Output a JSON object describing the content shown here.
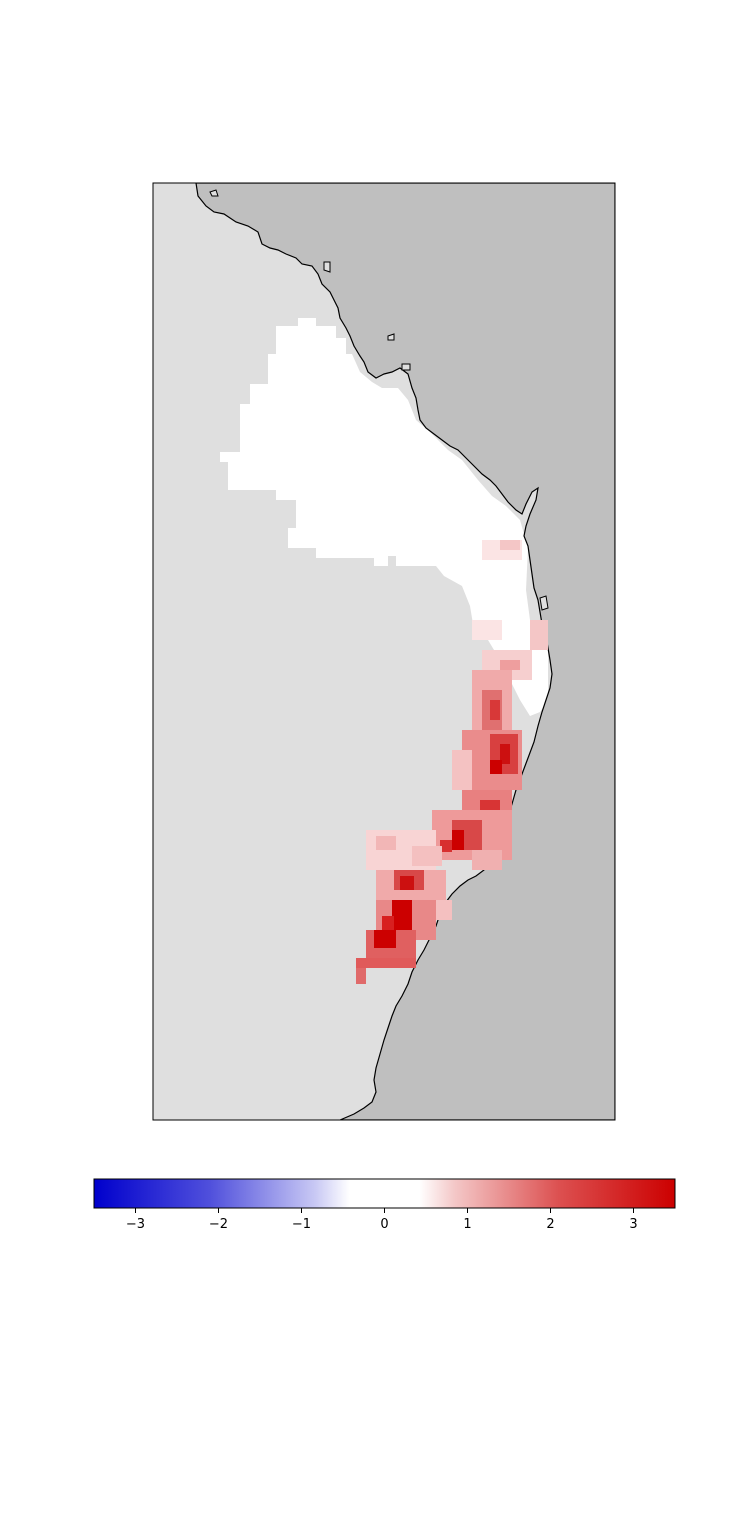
{
  "map": {
    "colors": {
      "land": "#dfdfdf",
      "ocean": "#bfbfbf",
      "coastline": "#000000",
      "frame": "#000000"
    },
    "field": {
      "description_of_values": "gridded anomaly field over eastern Australian coastal region",
      "value_range_visible": [
        0,
        3.5
      ]
    }
  },
  "colorbar": {
    "colormap": "seismic-like diverging blue-white-red",
    "color_low": "#0000cc",
    "color_mid": "#ffffff",
    "color_high": "#cc0000",
    "vmin": -3.5,
    "vmax": 3.5,
    "ticks": [
      {
        "value": -3,
        "label": "−3"
      },
      {
        "value": -2,
        "label": "−2"
      },
      {
        "value": -1,
        "label": "−1"
      },
      {
        "value": 0,
        "label": "0"
      },
      {
        "value": 1,
        "label": "1"
      },
      {
        "value": 2,
        "label": "2"
      },
      {
        "value": 3,
        "label": "3"
      }
    ]
  }
}
